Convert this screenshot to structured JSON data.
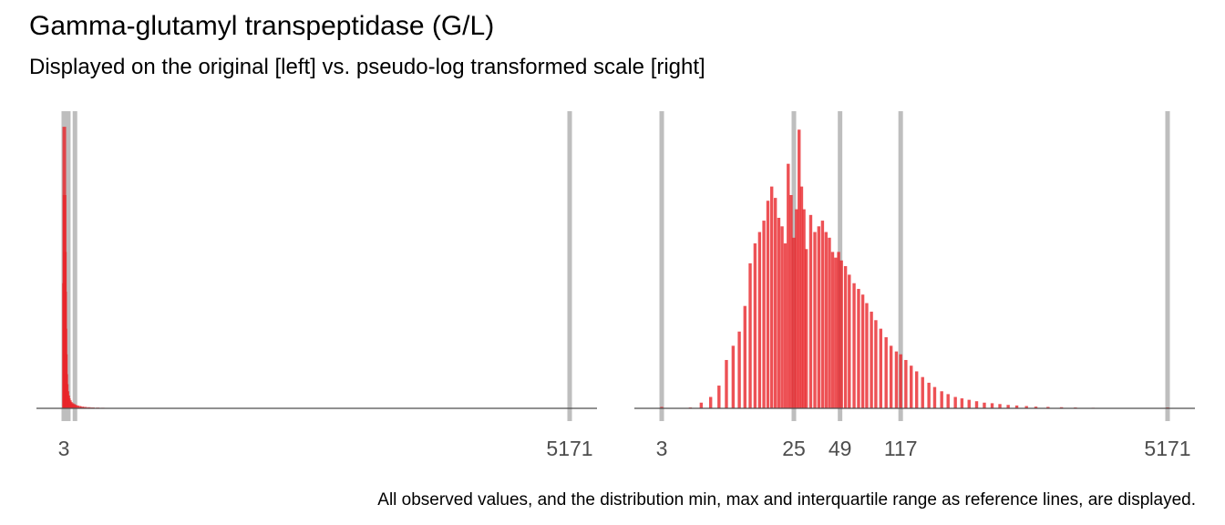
{
  "title": "Gamma-glutamyl transpeptidase (G/L)",
  "subtitle": "Displayed on the original [left] vs. pseudo-log transformed scale [right]",
  "caption": "All observed values, and the distribution min, max and interquartile range as reference lines, are displayed.",
  "colors": {
    "bars": "#e8262b",
    "reference_lines": "#bebebe",
    "axis": "#4d4d4d"
  },
  "chart_data": [
    {
      "type": "bar",
      "scale": "original",
      "xlim": [
        3,
        5171
      ],
      "reference_lines": [
        3,
        25,
        49,
        117,
        5171
      ],
      "tick_labels": [
        "3",
        "5171"
      ],
      "x": [
        5,
        8,
        11,
        14,
        17,
        20,
        24,
        28,
        33,
        40,
        48,
        55,
        65,
        75,
        90,
        105,
        120,
        140,
        165,
        190,
        220,
        260,
        300,
        350,
        400,
        460,
        530,
        600,
        700,
        800
      ],
      "values": [
        0.44,
        0.99,
        0.75,
        0.55,
        0.41,
        0.28,
        0.19,
        0.12,
        0.085,
        0.06,
        0.045,
        0.035,
        0.028,
        0.022,
        0.018,
        0.015,
        0.012,
        0.01,
        0.008,
        0.006,
        0.005,
        0.004,
        0.003,
        0.0025,
        0.002,
        0.0015,
        0.0012,
        0.001,
        0.0008,
        0.0006
      ]
    },
    {
      "type": "bar",
      "scale": "pseudo-log",
      "xlim": [
        3,
        5171
      ],
      "reference_lines": [
        3,
        25,
        49,
        117,
        5171
      ],
      "tick_labels": [
        "3",
        "25",
        "49",
        "117",
        "5171"
      ],
      "x": [
        3,
        5,
        6,
        7,
        8,
        9,
        10,
        11,
        12,
        13,
        14,
        15,
        16,
        17,
        18,
        19,
        20,
        21,
        22,
        23,
        24,
        25,
        26,
        27,
        28,
        29,
        30,
        32,
        34,
        36,
        38,
        40,
        42,
        44,
        46,
        48,
        50,
        53,
        56,
        60,
        64,
        68,
        72,
        77,
        82,
        88,
        95,
        102,
        110,
        117,
        126,
        136,
        147,
        160,
        175,
        190,
        210,
        230,
        255,
        280,
        310,
        345,
        385,
        430,
        480,
        540,
        610,
        700,
        800,
        950,
        1150,
        1400,
        1800,
        2500,
        3500,
        5171
      ],
      "values": [
        0.005,
        0.003,
        0.02,
        0.04,
        0.08,
        0.17,
        0.22,
        0.27,
        0.36,
        0.51,
        0.58,
        0.62,
        0.66,
        0.73,
        0.78,
        0.74,
        0.67,
        0.64,
        0.58,
        0.86,
        0.75,
        0.6,
        0.7,
        0.98,
        0.78,
        0.7,
        0.56,
        0.68,
        0.62,
        0.64,
        0.66,
        0.62,
        0.6,
        0.55,
        0.53,
        0.55,
        0.52,
        0.5,
        0.47,
        0.44,
        0.42,
        0.4,
        0.37,
        0.34,
        0.31,
        0.28,
        0.25,
        0.22,
        0.2,
        0.19,
        0.17,
        0.15,
        0.13,
        0.11,
        0.09,
        0.075,
        0.06,
        0.05,
        0.04,
        0.035,
        0.03,
        0.025,
        0.02,
        0.018,
        0.015,
        0.012,
        0.01,
        0.008,
        0.006,
        0.005,
        0.004,
        0.003,
        0.002,
        0.0015,
        0.001,
        0.003
      ]
    }
  ]
}
